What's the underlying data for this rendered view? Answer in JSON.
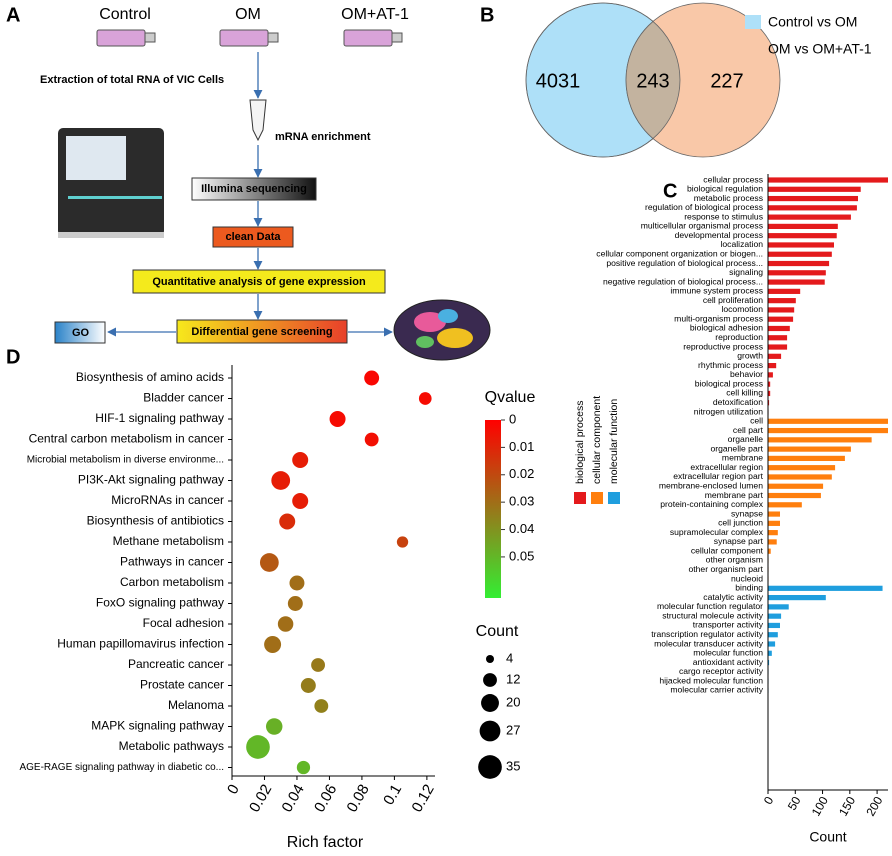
{
  "panel_labels": [
    "A",
    "B",
    "C",
    "D"
  ],
  "workflow": {
    "groups": [
      "Control",
      "OM",
      "OM+AT-1"
    ],
    "steps": [
      "Extraction of total RNA of VIC Cells",
      "mRNA enrichment",
      "Illumina sequencing",
      "clean Data",
      "Quantitative analysis of gene expression",
      "Differential gene screening"
    ],
    "outputs": [
      "GO"
    ]
  },
  "chart_data": [
    {
      "type": "venn",
      "values": [
        4031,
        243,
        227
      ],
      "overlap_color": "#c3b39f",
      "series": [
        {
          "name": "Control vs OM",
          "color": "#aee0f8"
        },
        {
          "name": "OM vs OM+AT-1",
          "color": "#f9c8a8"
        }
      ]
    },
    {
      "type": "bar",
      "orientation": "horizontal",
      "xlabel": "Count",
      "xlim": [
        0,
        220
      ],
      "xticks": [
        0,
        50,
        100,
        150,
        200
      ],
      "series": [
        {
          "name": "biological process",
          "color": "#e41a1c",
          "categories": [
            "cellular process",
            "biological regulation",
            "metabolic process",
            "regulation of biological process",
            "response to stimulus",
            "multicellular organismal process",
            "developmental process",
            "localization",
            "cellular component organization or biogen...",
            "positive regulation of biological process...",
            "signaling",
            "negative regulation of biological process...",
            "immune system process",
            "cell proliferation",
            "locomotion",
            "multi-organism process",
            "biological adhesion",
            "reproduction",
            "reproductive process",
            "growth",
            "rhythmic process",
            "behavior",
            "biological process",
            "cell killing",
            "detoxification",
            "nitrogen utilization"
          ],
          "values": [
            220,
            170,
            165,
            163,
            152,
            128,
            126,
            121,
            117,
            112,
            106,
            104,
            59,
            51,
            48,
            46,
            40,
            35,
            35,
            24,
            15,
            9,
            4,
            4,
            2,
            1
          ]
        },
        {
          "name": "cellular component",
          "color": "#ff7f0e",
          "categories": [
            "cell",
            "cell part",
            "organelle",
            "organelle part",
            "membrane",
            "extracellular region",
            "extracellular region part",
            "membrane-enclosed lumen",
            "membrane part",
            "protein-containing complex",
            "synapse",
            "cell junction",
            "supramolecular complex",
            "synapse part",
            "cellular component",
            "other organism",
            "other organism part",
            "nucleoid"
          ],
          "values": [
            220,
            220,
            190,
            152,
            141,
            123,
            117,
            101,
            97,
            62,
            22,
            22,
            18,
            16,
            5,
            1,
            1,
            1
          ]
        },
        {
          "name": "molecular function",
          "color": "#1f9ede",
          "categories": [
            "binding",
            "catalytic activity",
            "molecular function regulator",
            "structural molecule activity",
            "transporter activity",
            "transcription regulator activity",
            "molecular transducer activity",
            "molecular function",
            "antioxidant activity",
            "cargo receptor activity",
            "hijacked molecular function",
            "molecular carrier activity"
          ],
          "values": [
            210,
            106,
            38,
            24,
            22,
            18,
            13,
            7,
            2,
            1,
            1,
            1
          ]
        }
      ]
    },
    {
      "type": "scatter",
      "xlabel": "Rich factor",
      "xlim": [
        0,
        0.125
      ],
      "xticks": [
        0,
        0.02,
        0.04,
        0.06,
        0.08,
        0.1,
        0.12
      ],
      "categories": [
        "Biosynthesis of amino acids",
        "Bladder cancer",
        "HIF-1 signaling pathway",
        "Central carbon metabolism in cancer",
        "Microbial metabolism in diverse environme...",
        "PI3K-Akt signaling pathway",
        "MicroRNAs in cancer",
        "Biosynthesis of antibiotics",
        "Methane metabolism",
        "Pathways in cancer",
        "Carbon metabolism",
        "FoxO signaling pathway",
        "Focal adhesion",
        "Human papillomavirus infection",
        "Pancreatic cancer",
        "Prostate cancer",
        "Melanoma",
        "MAPK signaling pathway",
        "Metabolic pathways",
        "AGE-RAGE signaling pathway in diabetic co..."
      ],
      "x": [
        0.086,
        0.119,
        0.065,
        0.086,
        0.042,
        0.03,
        0.042,
        0.034,
        0.105,
        0.023,
        0.04,
        0.039,
        0.033,
        0.025,
        0.053,
        0.047,
        0.055,
        0.026,
        0.016,
        0.044
      ],
      "size": [
        14,
        10,
        16,
        12,
        16,
        22,
        16,
        16,
        8,
        22,
        14,
        14,
        15,
        18,
        12,
        14,
        12,
        17,
        35,
        11
      ],
      "qvalue": [
        0.002,
        0.003,
        0.003,
        0.004,
        0.008,
        0.008,
        0.008,
        0.012,
        0.018,
        0.024,
        0.03,
        0.03,
        0.03,
        0.03,
        0.033,
        0.034,
        0.035,
        0.048,
        0.05,
        0.05
      ],
      "colorbar": {
        "title": "Qvalue",
        "lim": [
          0,
          0.065
        ],
        "ticks": [
          0,
          0.01,
          0.02,
          0.03,
          0.04,
          0.05
        ],
        "colors": [
          "#ff0000",
          "#33ee33"
        ]
      },
      "size_legend": {
        "title": "Count",
        "values": [
          4,
          12,
          20,
          27,
          35
        ]
      }
    }
  ]
}
